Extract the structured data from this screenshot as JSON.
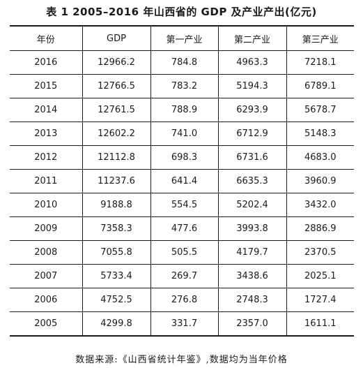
{
  "title": "表 1  2005–2016 年山西省的 GDP 及产业产出(亿元)",
  "table": {
    "headers": [
      "年份",
      "GDP",
      "第一产业",
      "第二产业",
      "第三产业"
    ],
    "rows": [
      [
        "2016",
        "12966.2",
        "784.8",
        "4963.3",
        "7218.1"
      ],
      [
        "2015",
        "12766.5",
        "783.2",
        "5194.3",
        "6789.1"
      ],
      [
        "2014",
        "12761.5",
        "788.9",
        "6293.9",
        "5678.7"
      ],
      [
        "2013",
        "12602.2",
        "741.0",
        "6712.9",
        "5148.3"
      ],
      [
        "2012",
        "12112.8",
        "698.3",
        "6731.6",
        "4683.0"
      ],
      [
        "2011",
        "11237.6",
        "641.4",
        "6635.3",
        "3960.9"
      ],
      [
        "2010",
        "9188.8",
        "554.5",
        "5202.4",
        "3432.0"
      ],
      [
        "2009",
        "7358.3",
        "477.6",
        "3993.8",
        "2886.9"
      ],
      [
        "2008",
        "7055.8",
        "505.5",
        "4179.7",
        "2370.5"
      ],
      [
        "2007",
        "5733.4",
        "269.7",
        "3438.6",
        "2025.1"
      ],
      [
        "2006",
        "4752.5",
        "276.8",
        "2748.3",
        "1727.4"
      ],
      [
        "2005",
        "4299.8",
        "331.7",
        "2357.0",
        "1611.1"
      ]
    ]
  },
  "source": "数据来源:《山西省统计年鉴》,数据均为当年价格"
}
